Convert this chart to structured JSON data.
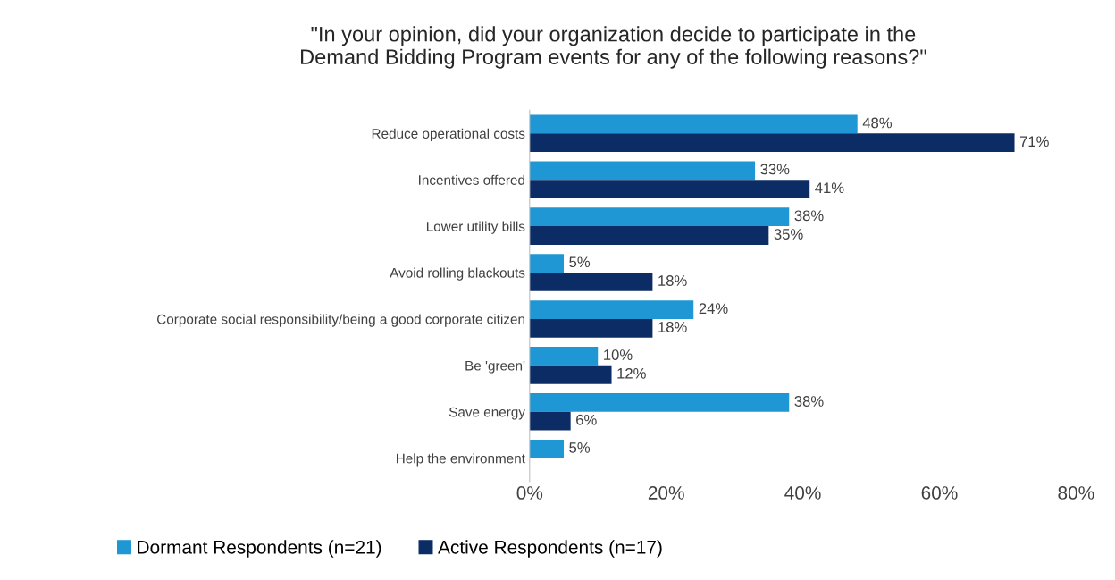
{
  "chart_data": {
    "type": "bar",
    "orientation": "horizontal",
    "title": "\"In your opinion, did your organization decide to participate in the\nDemand Bidding Program events for any of the following reasons?\"",
    "categories": [
      "Reduce operational costs",
      "Incentives offered",
      "Lower utility bills",
      "Avoid rolling blackouts",
      "Corporate social responsibility/being a good corporate citizen",
      "Be 'green'",
      "Save energy",
      "Help the environment"
    ],
    "series": [
      {
        "name": "Dormant Respondents (n=21)",
        "color": "#1f97d4",
        "values": [
          48,
          33,
          38,
          5,
          24,
          10,
          38,
          5
        ],
        "value_labels": [
          "48%",
          "33%",
          "38%",
          "5%",
          "24%",
          "10%",
          "38%",
          "5%"
        ]
      },
      {
        "name": "Active Respondents (n=17)",
        "color": "#0c2c66",
        "values": [
          71,
          41,
          35,
          18,
          18,
          12,
          6,
          null
        ],
        "value_labels": [
          "71%",
          "41%",
          "35%",
          "18%",
          "18%",
          "12%",
          "6%",
          null
        ]
      }
    ],
    "xlim": [
      0,
      80
    ],
    "xticks": [
      {
        "value": 0,
        "label": "0%"
      },
      {
        "value": 20,
        "label": "20%"
      },
      {
        "value": 40,
        "label": "40%"
      },
      {
        "value": 60,
        "label": "60%"
      },
      {
        "value": 80,
        "label": "80%"
      }
    ],
    "grid": false,
    "legend": "bottom"
  }
}
